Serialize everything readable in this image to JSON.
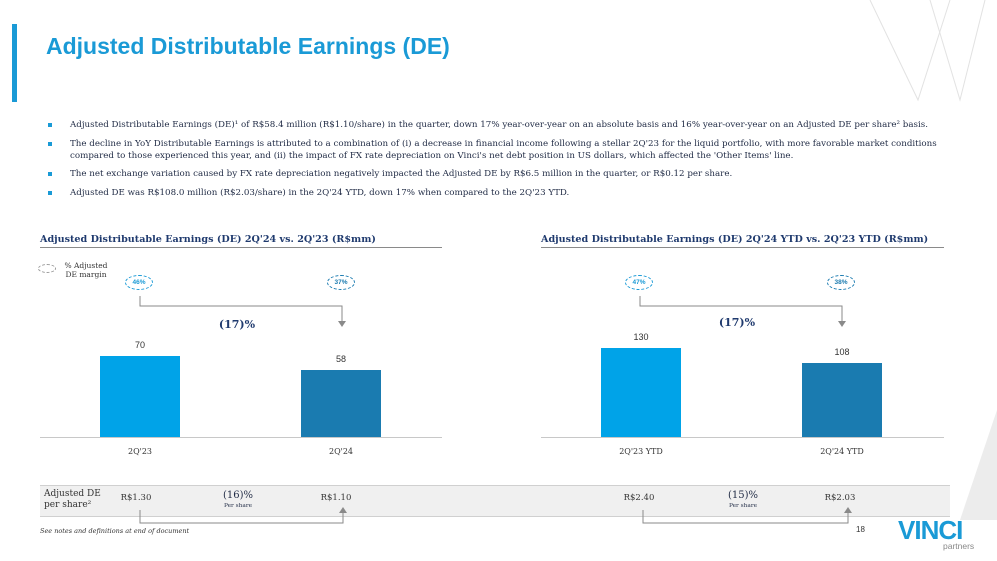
{
  "header": {
    "title": "Adjusted Distributable Earnings (DE)"
  },
  "bullets": [
    "Adjusted Distributable Earnings (DE)¹ of R$58.4 million (R$1.10/share) in the quarter, down 17% year-over-year on an absolute basis and 16% year-over-year on an Adjusted DE per share² basis.",
    "The decline in YoY Distributable Earnings is attributed to a combination of (i) a decrease in financial income following a stellar 2Q'23 for the liquid portfolio, with more favorable market conditions compared to those experienced this year, and (ii) the impact of FX rate depreciation on Vinci's net debt position in US dollars, which affected the 'Other Items' line.",
    "The net exchange variation caused by FX rate depreciation negatively impacted the Adjusted DE by R$6.5 million in the quarter, or R$0.12 per share.",
    "Adjusted DE was R$108.0 million (R$2.03/share) in the 2Q'24 YTD, down 17% when compared to the 2Q'23 YTD."
  ],
  "legend": {
    "label_line1": "% Adjusted",
    "label_line2": "DE margin"
  },
  "chart_data": [
    {
      "type": "bar",
      "title": "Adjusted Distributable Earnings (DE) 2Q'24 vs. 2Q'23 (R$mm)",
      "categories": [
        "2Q'23",
        "2Q'24"
      ],
      "values": [
        70,
        58
      ],
      "value_labels": [
        "70",
        "58"
      ],
      "margins": [
        "46%",
        "37%"
      ],
      "change_label": "(17)%",
      "colors": [
        "#00a3e8",
        "#1a7bb0"
      ],
      "ylim": [
        0,
        110
      ]
    },
    {
      "type": "bar",
      "title": "Adjusted Distributable Earnings (DE) 2Q'24 YTD vs. 2Q'23 YTD (R$mm)",
      "categories": [
        "2Q'23 YTD",
        "2Q'24 YTD"
      ],
      "values": [
        130,
        108
      ],
      "value_labels": [
        "130",
        "108"
      ],
      "margins": [
        "47%",
        "38%"
      ],
      "change_label": "(17)%",
      "colors": [
        "#00a3e8",
        "#1a7bb0"
      ],
      "ylim": [
        0,
        200
      ]
    }
  ],
  "per_share": {
    "label_line1": "Adjusted DE",
    "label_line2": "per share²",
    "left": {
      "from": "R$1.30",
      "to": "R$1.10",
      "change": "(16)%",
      "change_sub": "Per share"
    },
    "right": {
      "from": "R$2.40",
      "to": "R$2.03",
      "change": "(15)%",
      "change_sub": "Per share"
    }
  },
  "footer": {
    "note": "See notes and definitions at end of document",
    "page": "18",
    "logo_main": "VINCI",
    "logo_sub": "partners"
  },
  "colors": {
    "accent": "#1a9ad6",
    "bar_light": "#00a3e8",
    "bar_dark": "#1a7bb0",
    "title_navy": "#1f3a6e"
  }
}
